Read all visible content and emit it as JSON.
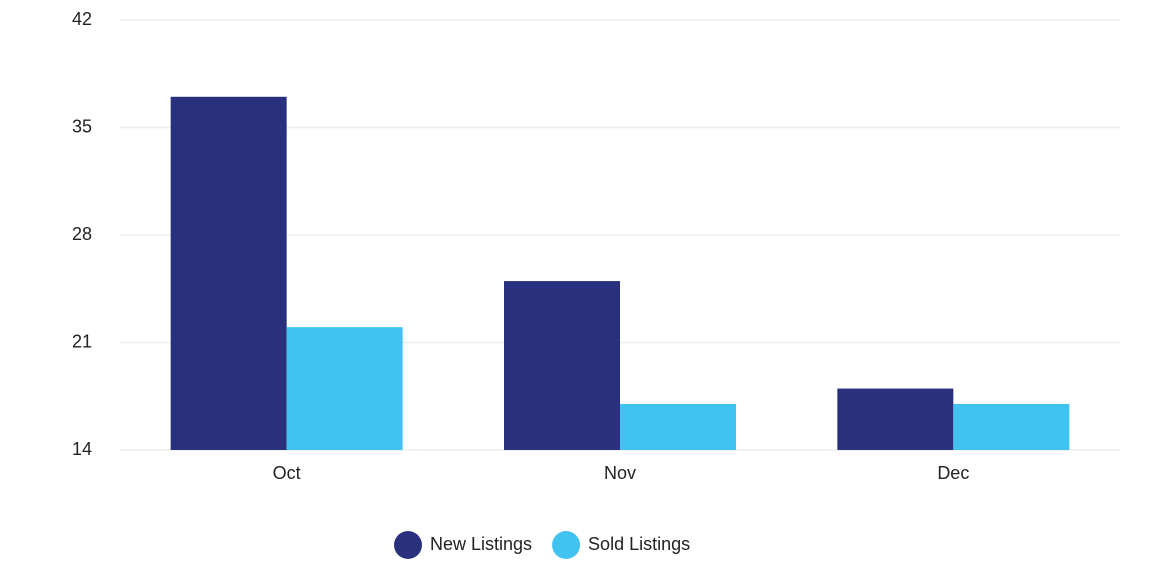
{
  "chart_data": {
    "type": "bar",
    "categories": [
      "Oct",
      "Nov",
      "Dec"
    ],
    "series": [
      {
        "name": "New Listings",
        "color": "#29307e",
        "values": [
          37,
          25,
          18
        ]
      },
      {
        "name": "Sold Listings",
        "color": "#40c3f0",
        "values": [
          22,
          17,
          17
        ]
      }
    ],
    "ylim": [
      14,
      42
    ],
    "yticks": [
      14,
      21,
      28,
      35,
      42
    ],
    "grid": true,
    "legend": "bottom"
  }
}
